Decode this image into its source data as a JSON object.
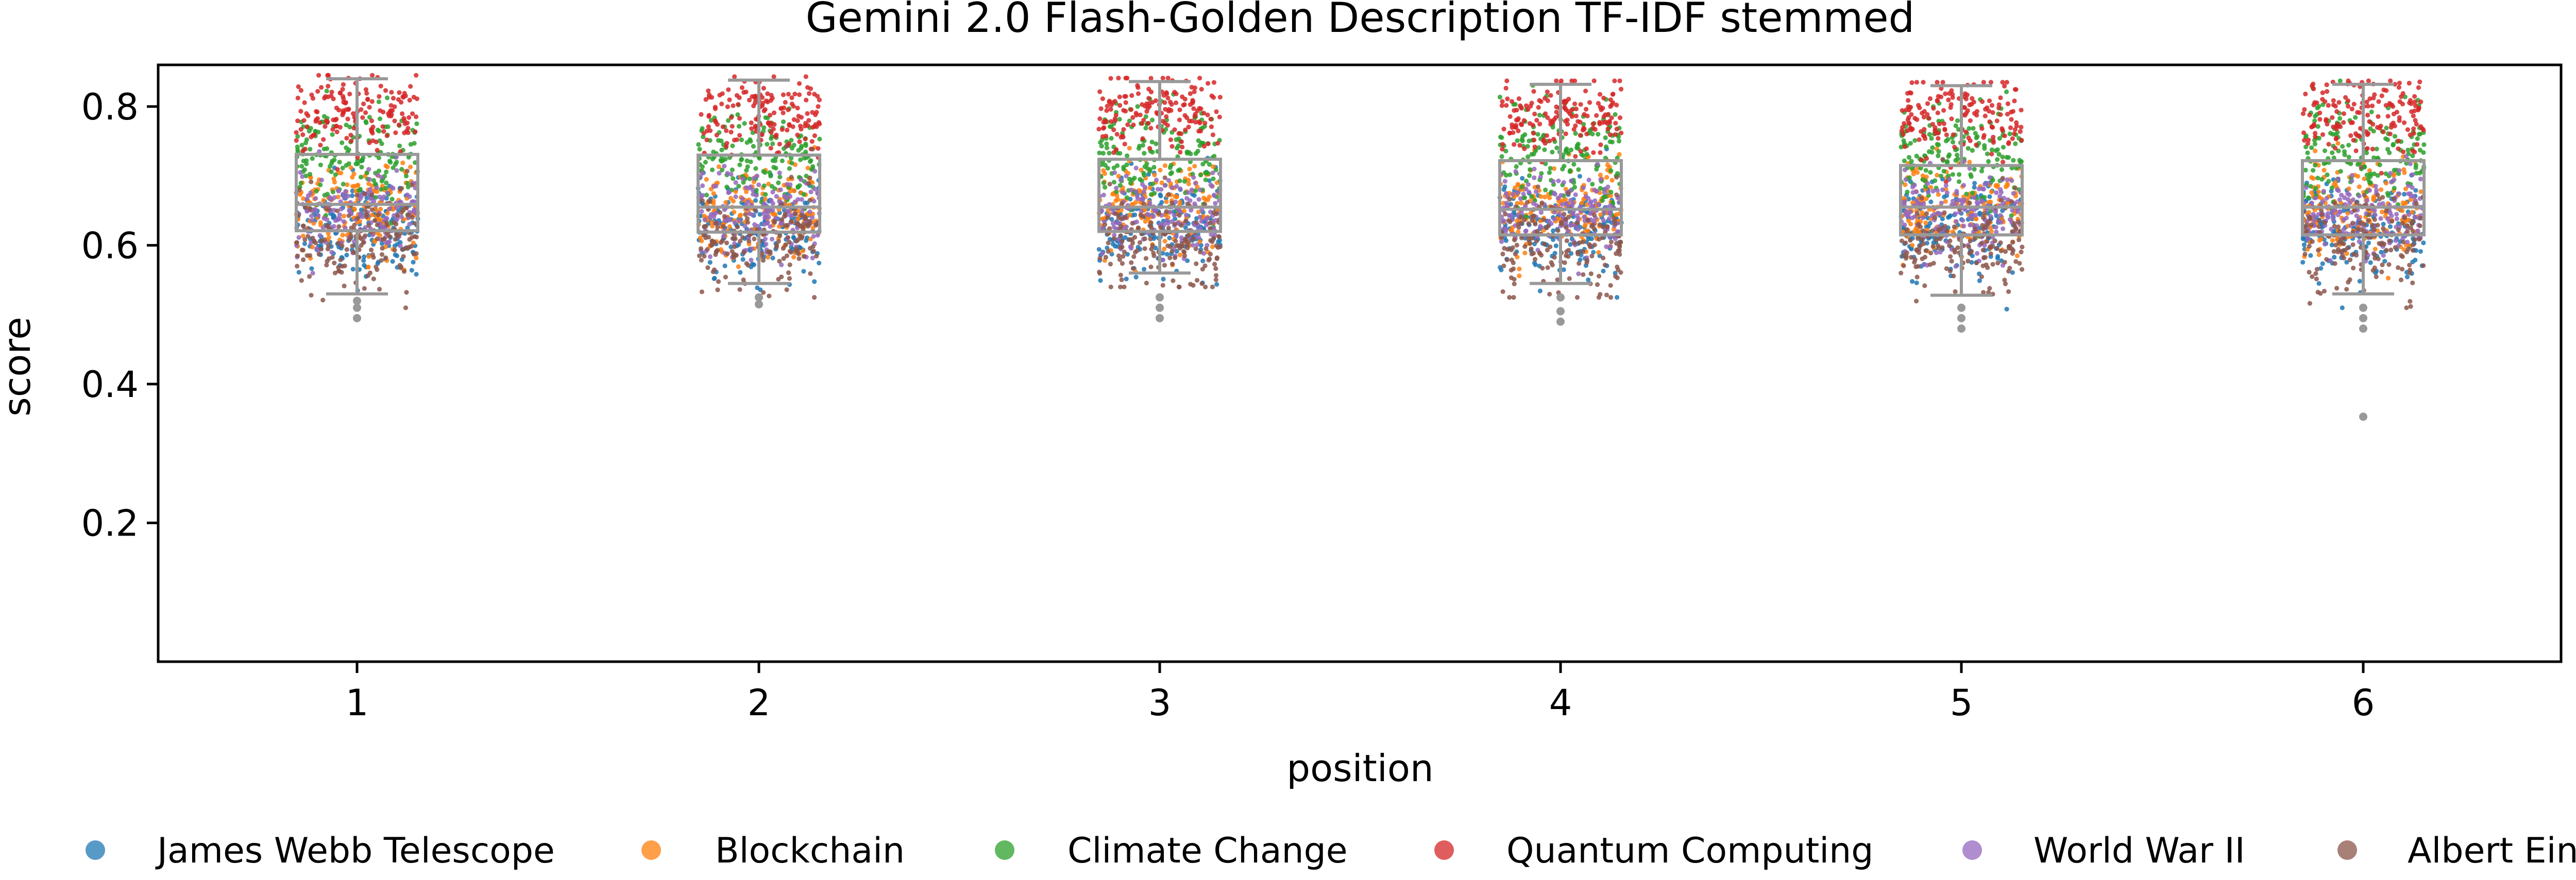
{
  "chart_data": {
    "type": "box+strip",
    "title": "Gemini 2.0 Flash-Golden Description TF-IDF stemmed",
    "xlabel": "position",
    "ylabel": "score",
    "categories": [
      "1",
      "2",
      "3",
      "4",
      "5",
      "6"
    ],
    "ylim": [
      0.0,
      0.86
    ],
    "yticks": [
      0.2,
      0.4,
      0.6,
      0.8
    ],
    "ytick_labels": [
      "0.2",
      "0.4",
      "0.6",
      "0.8"
    ],
    "grid": false,
    "legend_position": "bottom",
    "box_color": "#999999",
    "boxes": [
      {
        "position": "1",
        "whisker_low": 0.53,
        "q1": 0.621,
        "median": 0.659,
        "q3": 0.731,
        "whisker_high": 0.84,
        "outliers": [
          0.52,
          0.51,
          0.495
        ]
      },
      {
        "position": "2",
        "whisker_low": 0.545,
        "q1": 0.619,
        "median": 0.655,
        "q3": 0.73,
        "whisker_high": 0.838,
        "outliers": [
          0.525,
          0.515
        ]
      },
      {
        "position": "3",
        "whisker_low": 0.56,
        "q1": 0.62,
        "median": 0.655,
        "q3": 0.724,
        "whisker_high": 0.836,
        "outliers": [
          0.525,
          0.51,
          0.495
        ]
      },
      {
        "position": "4",
        "whisker_low": 0.545,
        "q1": 0.615,
        "median": 0.652,
        "q3": 0.722,
        "whisker_high": 0.832,
        "outliers": [
          0.525,
          0.505,
          0.49
        ]
      },
      {
        "position": "5",
        "whisker_low": 0.528,
        "q1": 0.615,
        "median": 0.655,
        "q3": 0.715,
        "whisker_high": 0.83,
        "outliers": [
          0.51,
          0.495,
          0.48
        ]
      },
      {
        "position": "6",
        "whisker_low": 0.53,
        "q1": 0.615,
        "median": 0.655,
        "q3": 0.722,
        "whisker_high": 0.832,
        "outliers": [
          0.51,
          0.495,
          0.48,
          0.353
        ]
      }
    ],
    "series": [
      {
        "name": "James Webb Telescope",
        "color": "#1f77b4",
        "center": 0.625,
        "spread": 0.035
      },
      {
        "name": "Blockchain",
        "color": "#ff7f0e",
        "center": 0.655,
        "spread": 0.035
      },
      {
        "name": "Climate Change",
        "color": "#2ca02c",
        "center": 0.73,
        "spread": 0.035
      },
      {
        "name": "Quantum Computing",
        "color": "#d62728",
        "center": 0.79,
        "spread": 0.028
      },
      {
        "name": "World War II",
        "color": "#9467bd",
        "center": 0.645,
        "spread": 0.03
      },
      {
        "name": "Albert Einstein",
        "color": "#8c564b",
        "center": 0.605,
        "spread": 0.035
      }
    ]
  }
}
